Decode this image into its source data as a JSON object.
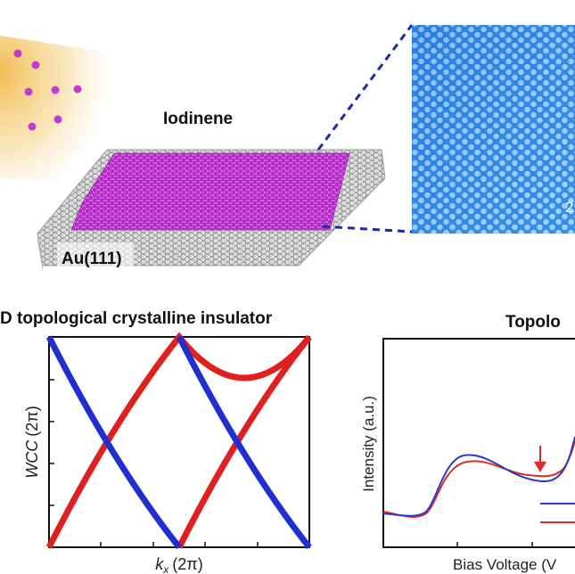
{
  "top": {
    "material_label": "Iodinene",
    "substrate_label": "Au(111)",
    "stm_partial_label": "2",
    "colors": {
      "iodine": "#c23ad0",
      "gold": "#c8c8c8",
      "stm_bg": "#2f86e6",
      "stm_dot": "#9fd6ff",
      "beam": "#f1b94a",
      "dash": "#1e2aa0"
    }
  },
  "left_panel": {
    "title": "D topological crystalline insulator",
    "ylabel_main": "WCC",
    "ylabel_unit": "(2π)",
    "xlabel_var": "k",
    "xlabel_sub": "x",
    "xlabel_unit": "(2π)",
    "series_colors": {
      "blue": "#1f2fd0",
      "red": "#e0201e"
    }
  },
  "right_panel": {
    "title": "Topolo",
    "ylabel": "Intensity (a.u.)",
    "xlabel": "Bias Voltage (V",
    "series_colors": {
      "blue": "#2a3bc8",
      "red": "#e02a2a"
    },
    "arrow_color": "#e02a2a"
  }
}
